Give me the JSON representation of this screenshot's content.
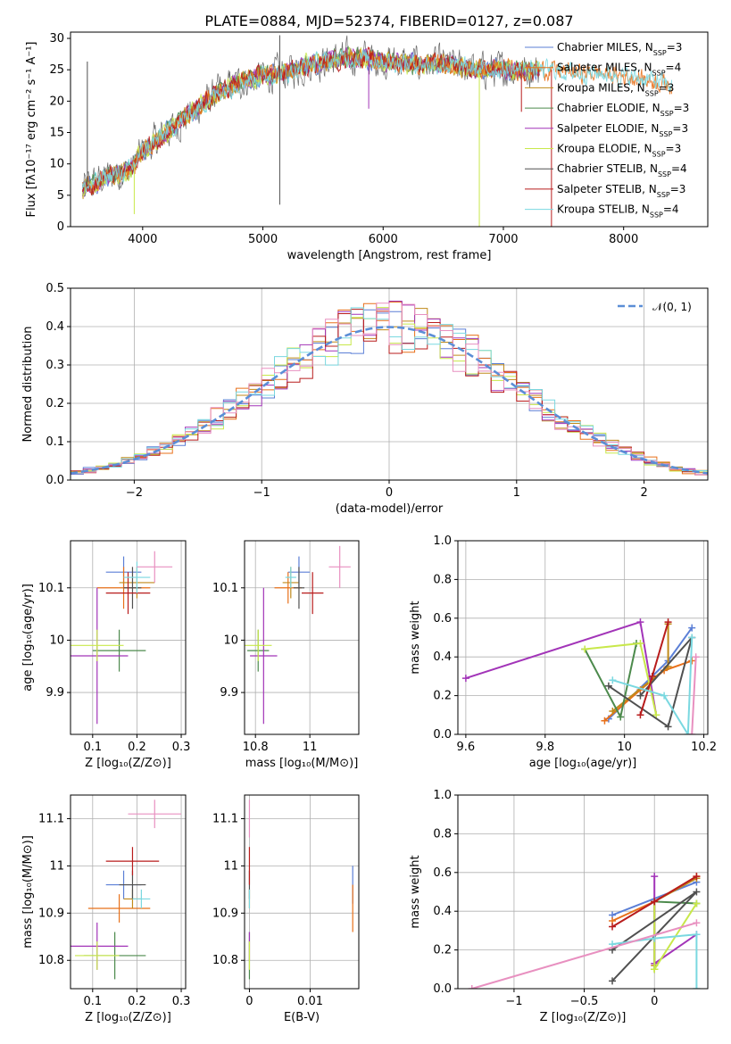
{
  "figure": {
    "title": "PLATE=0884, MJD=52374, FIBERID=0127, z=0.087",
    "series_colors": [
      "#5b7fd6",
      "#e8701a",
      "#c08a1a",
      "#4c8a4c",
      "#a234b8",
      "#c8e84a",
      "#505050",
      "#b81c1c",
      "#7ad8e0"
    ],
    "extra_color": "#e890c0"
  },
  "chart_data": [
    {
      "id": "spectrum",
      "type": "line",
      "title": "PLATE=0884, MJD=52374, FIBERID=0127, z=0.087",
      "xlabel": "wavelength [Angstrom, rest frame]",
      "ylabel": "Flux [fλ10⁻¹⁷ erg cm⁻² s⁻¹ A⁻¹]",
      "xlim": [
        3400,
        8700
      ],
      "ylim": [
        0,
        31
      ],
      "xticks": [
        4000,
        5000,
        6000,
        7000,
        8000
      ],
      "yticks": [
        0,
        5,
        10,
        15,
        20,
        25,
        30
      ],
      "legend_loc": "upper right",
      "legend": [
        "Chabrier MILES, N_SSP=3",
        "Salpeter MILES, N_SSP=4",
        "Kroupa MILES, N_SSP=3",
        "Chabrier ELODIE, N_SSP=3",
        "Salpeter ELODIE, N_SSP=3",
        "Kroupa ELODIE, N_SSP=3",
        "Chabrier STELIB, N_SSP=4",
        "Salpeter STELIB, N_SSP=3",
        "Kroupa STELIB, N_SSP=4"
      ],
      "continuum_x": [
        3500,
        3700,
        3900,
        4000,
        4200,
        4400,
        4600,
        4800,
        5000,
        5200,
        5400,
        5600,
        5800,
        6000,
        6200,
        6400,
        6600,
        6800,
        7000,
        7200,
        7400,
        7600,
        7800,
        8000,
        8200,
        8400
      ],
      "continuum_y": [
        6,
        8,
        9,
        12,
        15,
        18,
        21,
        23,
        24,
        24.5,
        26,
        26.5,
        27,
        26.5,
        26,
        26,
        25.5,
        25,
        25,
        25,
        25,
        24.5,
        24.5,
        24,
        23.5,
        22.5
      ],
      "features": [
        {
          "x": 3540,
          "y": 26.3
        },
        {
          "x": 5140,
          "y": 30.5
        },
        {
          "x": 5140,
          "y": 3.5
        },
        {
          "x": 5880,
          "y": 18.8
        },
        {
          "x": 3930,
          "y": 2.0
        },
        {
          "x": 6800,
          "y": 0
        },
        {
          "x": 7400,
          "y": 0
        },
        {
          "x": 7150,
          "y": 18.3
        }
      ]
    },
    {
      "id": "residuals",
      "type": "histogram",
      "xlabel": "(data-model)/error",
      "ylabel": "Normed distribution",
      "xlim": [
        -2.5,
        2.5
      ],
      "ylim": [
        0,
        0.5
      ],
      "xticks": [
        -2,
        -1,
        0,
        1,
        2
      ],
      "yticks": [
        0.0,
        0.1,
        0.2,
        0.3,
        0.4,
        0.5
      ],
      "bin_width": 0.1,
      "legend_loc": "upper right",
      "reference_curve": "𝒩(0, 1)"
    },
    {
      "id": "age_vs_Z",
      "type": "errorbar",
      "xlabel": "Z [log₁₀(Z/Z⊙)]",
      "ylabel": "age  [log₁₀(age/yr)]",
      "xlim": [
        0.05,
        0.31
      ],
      "ylim": [
        9.82,
        10.19
      ],
      "xticks": [
        0.1,
        0.2,
        0.3
      ],
      "yticks": [
        9.9,
        10.0,
        10.1
      ],
      "points": [
        {
          "x": 0.17,
          "y": 10.13,
          "xerr": 0.04,
          "yerr": 0.03
        },
        {
          "x": 0.17,
          "y": 10.1,
          "xerr": 0.06,
          "yerr": 0.04
        },
        {
          "x": 0.2,
          "y": 10.11,
          "xerr": 0.04,
          "yerr": 0.03
        },
        {
          "x": 0.16,
          "y": 9.98,
          "xerr": 0.06,
          "yerr": 0.04
        },
        {
          "x": 0.11,
          "y": 9.97,
          "xerr": 0.07,
          "yerr": 0.13
        },
        {
          "x": 0.11,
          "y": 9.99,
          "xerr": 0.06,
          "yerr": 0.03
        },
        {
          "x": 0.19,
          "y": 10.1,
          "xerr": 0.02,
          "yerr": 0.04
        },
        {
          "x": 0.18,
          "y": 10.09,
          "xerr": 0.05,
          "yerr": 0.04
        },
        {
          "x": 0.2,
          "y": 10.12,
          "xerr": 0.03,
          "yerr": 0.03
        },
        {
          "x": 0.24,
          "y": 10.14,
          "xerr": 0.04,
          "yerr": 0.03
        }
      ]
    },
    {
      "id": "age_vs_mass",
      "type": "errorbar",
      "xlabel": "mass [log₁₀(M/M⊙)]",
      "ylabel": "",
      "xlim": [
        10.76,
        11.18
      ],
      "ylim": [
        9.82,
        10.19
      ],
      "xticks": [
        10.8,
        11.0
      ],
      "yticks": [
        9.9,
        10.0,
        10.1
      ],
      "points": [
        {
          "x": 10.96,
          "y": 10.13,
          "xerr": 0.04,
          "yerr": 0.03
        },
        {
          "x": 10.92,
          "y": 10.1,
          "xerr": 0.05,
          "yerr": 0.03
        },
        {
          "x": 10.93,
          "y": 10.11,
          "xerr": 0.03,
          "yerr": 0.03
        },
        {
          "x": 10.81,
          "y": 9.98,
          "xerr": 0.04,
          "yerr": 0.04
        },
        {
          "x": 10.83,
          "y": 9.97,
          "xerr": 0.05,
          "yerr": 0.13
        },
        {
          "x": 10.81,
          "y": 9.99,
          "xerr": 0.05,
          "yerr": 0.03
        },
        {
          "x": 10.96,
          "y": 10.1,
          "xerr": 0.02,
          "yerr": 0.04
        },
        {
          "x": 11.01,
          "y": 10.09,
          "xerr": 0.04,
          "yerr": 0.04
        },
        {
          "x": 10.93,
          "y": 10.12,
          "xerr": 0.02,
          "yerr": 0.02
        },
        {
          "x": 11.11,
          "y": 10.14,
          "xerr": 0.04,
          "yerr": 0.04
        }
      ]
    },
    {
      "id": "mass_weight_vs_age",
      "type": "line",
      "xlabel": "age  [log₁₀(age/yr)]",
      "ylabel": "mass weight",
      "xlim": [
        9.58,
        10.21
      ],
      "ylim": [
        0,
        1.0
      ],
      "xticks": [
        9.6,
        9.8,
        10.0,
        10.2
      ],
      "yticks": [
        0.0,
        0.2,
        0.4,
        0.6,
        0.8,
        1.0
      ],
      "series": [
        {
          "x": [
            9.96,
            10.11,
            10.17
          ],
          "y": [
            0.08,
            0.38,
            0.55
          ]
        },
        {
          "x": [
            9.95,
            10.04,
            10.1,
            10.17
          ],
          "y": [
            0.07,
            0.23,
            0.33,
            0.38
          ]
        },
        {
          "x": [
            9.97,
            10.11,
            10.11
          ],
          "y": [
            0.12,
            0.35,
            0.57
          ]
        },
        {
          "x": [
            9.9,
            9.99,
            10.03
          ],
          "y": [
            0.44,
            0.09,
            0.47
          ]
        },
        {
          "x": [
            9.6,
            10.04,
            10.08
          ],
          "y": [
            0.29,
            0.58,
            0.1
          ]
        },
        {
          "x": [
            9.9,
            10.04,
            10.08
          ],
          "y": [
            0.44,
            0.47,
            0.1
          ]
        },
        {
          "x": [
            9.96,
            10.11,
            10.17,
            10.04
          ],
          "y": [
            0.25,
            0.04,
            0.5,
            0.2
          ]
        },
        {
          "x": [
            10.04,
            10.07,
            10.11
          ],
          "y": [
            0.1,
            0.3,
            0.58
          ]
        },
        {
          "x": [
            9.97,
            10.1,
            10.16,
            10.17
          ],
          "y": [
            0.28,
            0.2,
            0.0,
            0.5
          ]
        },
        {
          "x": [
            10.17,
            10.18
          ],
          "y": [
            0.0,
            0.4
          ]
        }
      ]
    },
    {
      "id": "mass_vs_Z",
      "type": "errorbar",
      "xlabel": "Z [log₁₀(Z/Z⊙)]",
      "ylabel": "mass [log₁₀(M/M⊙)]",
      "xlim": [
        0.05,
        0.31
      ],
      "ylim": [
        10.74,
        11.15
      ],
      "xticks": [
        0.1,
        0.2,
        0.3
      ],
      "yticks": [
        10.8,
        10.9,
        11.0,
        11.1
      ],
      "points": [
        {
          "x": 0.17,
          "y": 10.96,
          "xerr": 0.04,
          "yerr": 0.03
        },
        {
          "x": 0.16,
          "y": 10.91,
          "xerr": 0.07,
          "yerr": 0.03
        },
        {
          "x": 0.19,
          "y": 10.93,
          "xerr": 0.02,
          "yerr": 0.02
        },
        {
          "x": 0.15,
          "y": 10.81,
          "xerr": 0.07,
          "yerr": 0.05
        },
        {
          "x": 0.11,
          "y": 10.83,
          "xerr": 0.07,
          "yerr": 0.05
        },
        {
          "x": 0.11,
          "y": 10.81,
          "xerr": 0.05,
          "yerr": 0.03
        },
        {
          "x": 0.19,
          "y": 10.96,
          "xerr": 0.03,
          "yerr": 0.03
        },
        {
          "x": 0.19,
          "y": 11.01,
          "xerr": 0.06,
          "yerr": 0.03
        },
        {
          "x": 0.21,
          "y": 10.93,
          "xerr": 0.02,
          "yerr": 0.02
        },
        {
          "x": 0.24,
          "y": 11.11,
          "xerr": 0.06,
          "yerr": 0.03
        }
      ]
    },
    {
      "id": "mass_vs_ebv",
      "type": "errorbar",
      "xlabel": "E(B-V)",
      "ylabel": "",
      "xlim": [
        -0.0008,
        0.018
      ],
      "ylim": [
        10.74,
        11.15
      ],
      "xticks": [
        0.0,
        0.01
      ],
      "yticks": [
        10.8,
        10.9,
        11.0,
        11.1
      ],
      "points": [
        {
          "x": 0.017,
          "y": 10.96,
          "xerr": 0,
          "yerr": 0.04
        },
        {
          "x": 0.017,
          "y": 10.91,
          "xerr": 0,
          "yerr": 0.05
        },
        {
          "x": 0.0,
          "y": 10.93,
          "xerr": 0,
          "yerr": 0.02
        },
        {
          "x": 0.0,
          "y": 10.81,
          "xerr": 0,
          "yerr": 0.05
        },
        {
          "x": 0.0,
          "y": 10.83,
          "xerr": 0,
          "yerr": 0.03
        },
        {
          "x": 0.0,
          "y": 10.81,
          "xerr": 0,
          "yerr": 0.03
        },
        {
          "x": 0.0,
          "y": 10.96,
          "xerr": 0,
          "yerr": 0.03
        },
        {
          "x": 0.0,
          "y": 11.0,
          "xerr": 0,
          "yerr": 0.04
        },
        {
          "x": 0.0,
          "y": 10.93,
          "xerr": 0,
          "yerr": 0.02
        },
        {
          "x": 0.0,
          "y": 11.1,
          "xerr": 0,
          "yerr": 0.04
        }
      ]
    },
    {
      "id": "mass_weight_vs_Z",
      "type": "line",
      "xlabel": "Z [log₁₀(Z/Z⊙)]",
      "ylabel": "mass weight",
      "xlim": [
        -1.4,
        0.38
      ],
      "ylim": [
        0,
        1.0
      ],
      "xticks": [
        -1.0,
        -0.5,
        0.0
      ],
      "yticks": [
        0.0,
        0.2,
        0.4,
        0.6,
        0.8,
        1.0
      ],
      "series": [
        {
          "x": [
            -0.3,
            0.3
          ],
          "y": [
            0.38,
            0.55
          ]
        },
        {
          "x": [
            -0.3,
            0.0,
            0.3
          ],
          "y": [
            0.35,
            0.45,
            0.58
          ]
        },
        {
          "x": [
            0.0,
            0.0,
            0.3
          ],
          "y": [
            0.12,
            0.45,
            0.57
          ]
        },
        {
          "x": [
            0.0,
            0.0,
            0.3
          ],
          "y": [
            0.1,
            0.45,
            0.44
          ]
        },
        {
          "x": [
            0.0,
            0.0,
            0.3
          ],
          "y": [
            0.58,
            0.13,
            0.28
          ]
        },
        {
          "x": [
            0.0,
            0.0,
            0.3
          ],
          "y": [
            0.45,
            0.1,
            0.44
          ]
        },
        {
          "x": [
            -0.3,
            0.3,
            -0.3
          ],
          "y": [
            0.04,
            0.5,
            0.2
          ]
        },
        {
          "x": [
            -0.3,
            0.0,
            0.3
          ],
          "y": [
            0.32,
            0.45,
            0.58
          ]
        },
        {
          "x": [
            -0.3,
            0.0,
            0.3,
            0.3
          ],
          "y": [
            0.23,
            0.26,
            0.28,
            0.0
          ]
        },
        {
          "x": [
            -1.3,
            0.3
          ],
          "y": [
            0.0,
            0.34
          ]
        }
      ]
    }
  ]
}
